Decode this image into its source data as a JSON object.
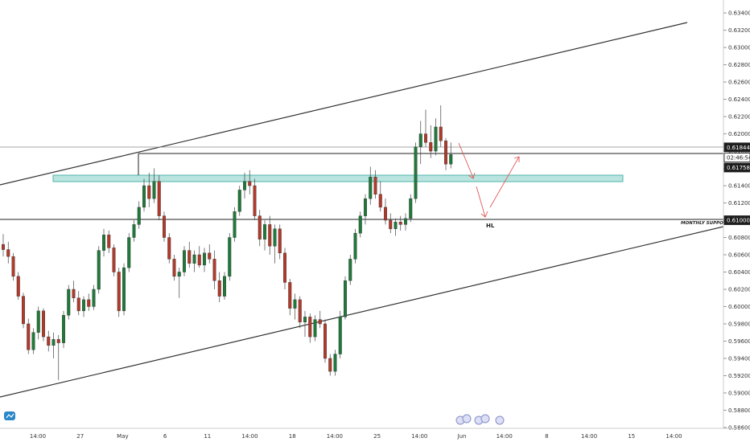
{
  "chart_data": {
    "type": "candlestick",
    "instrument_hint": "",
    "price_axis": {
      "ticks": [
        "0.63400",
        "0.63200",
        "0.63000",
        "0.62800",
        "0.62600",
        "0.62400",
        "0.62200",
        "0.62000",
        "0.61800",
        "0.61600",
        "0.61400",
        "0.61200",
        "0.61000",
        "0.60800",
        "0.60600",
        "0.60400",
        "0.60200",
        "0.60000",
        "0.59800",
        "0.59600",
        "0.59400",
        "0.59200",
        "0.59000",
        "0.58800",
        "0.58600"
      ],
      "ylim": [
        0.5859,
        0.6355
      ]
    },
    "time_axis": {
      "ticks": [
        {
          "label": "14:00",
          "x": 0
        },
        {
          "label": "27",
          "x": 1
        },
        {
          "label": "May",
          "x": 2
        },
        {
          "label": "6",
          "x": 3
        },
        {
          "label": "11",
          "x": 4
        },
        {
          "label": "14:00",
          "x": 5
        },
        {
          "label": "18",
          "x": 6
        },
        {
          "label": "14:00",
          "x": 7
        },
        {
          "label": "25",
          "x": 8
        },
        {
          "label": "14:00",
          "x": 9
        },
        {
          "label": "Jun",
          "x": 10
        },
        {
          "label": "14:00",
          "x": 11
        },
        {
          "label": "8",
          "x": 12
        },
        {
          "label": "14:00",
          "x": 13
        },
        {
          "label": "15",
          "x": 14
        },
        {
          "label": "14:00",
          "x": 15
        }
      ]
    },
    "price_labels": [
      {
        "text": "0.61844",
        "price": 0.61844,
        "style": "dark"
      },
      {
        "text": "02:46:54",
        "price": 0.61725,
        "style": "outline"
      },
      {
        "text": "0.61758",
        "price": 0.6161,
        "style": "dark"
      },
      {
        "text": "0.61000",
        "price": 0.61,
        "style": "dark"
      }
    ],
    "annotations": {
      "monthly_support": {
        "text": "MONTHLY SUPPORT",
        "price": 0.61
      },
      "hl": {
        "text": "HL"
      }
    },
    "candles": [
      {
        "o": 0.6072,
        "h": 0.6084,
        "l": 0.6058,
        "c": 0.6066
      },
      {
        "o": 0.6066,
        "h": 0.6075,
        "l": 0.605,
        "c": 0.6058
      },
      {
        "o": 0.6058,
        "h": 0.6062,
        "l": 0.603,
        "c": 0.6035
      },
      {
        "o": 0.6035,
        "h": 0.604,
        "l": 0.6008,
        "c": 0.6012
      },
      {
        "o": 0.6012,
        "h": 0.6016,
        "l": 0.5975,
        "c": 0.598
      },
      {
        "o": 0.598,
        "h": 0.5986,
        "l": 0.5945,
        "c": 0.595
      },
      {
        "o": 0.595,
        "h": 0.5975,
        "l": 0.5945,
        "c": 0.597
      },
      {
        "o": 0.597,
        "h": 0.6,
        "l": 0.5962,
        "c": 0.5995
      },
      {
        "o": 0.5995,
        "h": 0.5998,
        "l": 0.596,
        "c": 0.5965
      },
      {
        "o": 0.5965,
        "h": 0.5972,
        "l": 0.5948,
        "c": 0.5955
      },
      {
        "o": 0.5955,
        "h": 0.597,
        "l": 0.594,
        "c": 0.5962
      },
      {
        "o": 0.5962,
        "h": 0.5967,
        "l": 0.5915,
        "c": 0.5958
      },
      {
        "o": 0.5958,
        "h": 0.5995,
        "l": 0.5952,
        "c": 0.599
      },
      {
        "o": 0.599,
        "h": 0.6025,
        "l": 0.5985,
        "c": 0.602
      },
      {
        "o": 0.602,
        "h": 0.603,
        "l": 0.6005,
        "c": 0.601
      },
      {
        "o": 0.601,
        "h": 0.6018,
        "l": 0.599,
        "c": 0.5995
      },
      {
        "o": 0.5995,
        "h": 0.6012,
        "l": 0.5988,
        "c": 0.6008
      },
      {
        "o": 0.6008,
        "h": 0.6015,
        "l": 0.5995,
        "c": 0.6
      },
      {
        "o": 0.6,
        "h": 0.6025,
        "l": 0.5996,
        "c": 0.602
      },
      {
        "o": 0.602,
        "h": 0.607,
        "l": 0.6015,
        "c": 0.6065
      },
      {
        "o": 0.6065,
        "h": 0.609,
        "l": 0.6058,
        "c": 0.6083
      },
      {
        "o": 0.6083,
        "h": 0.6088,
        "l": 0.6062,
        "c": 0.6068
      },
      {
        "o": 0.6068,
        "h": 0.6072,
        "l": 0.6035,
        "c": 0.604
      },
      {
        "o": 0.604,
        "h": 0.6045,
        "l": 0.5988,
        "c": 0.5995
      },
      {
        "o": 0.5995,
        "h": 0.605,
        "l": 0.599,
        "c": 0.6045
      },
      {
        "o": 0.6045,
        "h": 0.6085,
        "l": 0.604,
        "c": 0.608
      },
      {
        "o": 0.608,
        "h": 0.61,
        "l": 0.6075,
        "c": 0.6095
      },
      {
        "o": 0.6095,
        "h": 0.6122,
        "l": 0.609,
        "c": 0.6115
      },
      {
        "o": 0.6115,
        "h": 0.6148,
        "l": 0.611,
        "c": 0.614
      },
      {
        "o": 0.614,
        "h": 0.6155,
        "l": 0.6115,
        "c": 0.6125
      },
      {
        "o": 0.6125,
        "h": 0.616,
        "l": 0.612,
        "c": 0.6145
      },
      {
        "o": 0.6145,
        "h": 0.6152,
        "l": 0.61,
        "c": 0.6105
      },
      {
        "o": 0.6105,
        "h": 0.611,
        "l": 0.6075,
        "c": 0.608
      },
      {
        "o": 0.608,
        "h": 0.6085,
        "l": 0.605,
        "c": 0.6055
      },
      {
        "o": 0.6055,
        "h": 0.606,
        "l": 0.603,
        "c": 0.6035
      },
      {
        "o": 0.6035,
        "h": 0.6045,
        "l": 0.601,
        "c": 0.604
      },
      {
        "o": 0.604,
        "h": 0.607,
        "l": 0.6035,
        "c": 0.6065
      },
      {
        "o": 0.6065,
        "h": 0.6075,
        "l": 0.6045,
        "c": 0.605
      },
      {
        "o": 0.605,
        "h": 0.6065,
        "l": 0.604,
        "c": 0.606
      },
      {
        "o": 0.606,
        "h": 0.607,
        "l": 0.6045,
        "c": 0.6048
      },
      {
        "o": 0.6048,
        "h": 0.6068,
        "l": 0.604,
        "c": 0.6062
      },
      {
        "o": 0.6062,
        "h": 0.6072,
        "l": 0.605,
        "c": 0.6055
      },
      {
        "o": 0.6055,
        "h": 0.6065,
        "l": 0.602,
        "c": 0.603
      },
      {
        "o": 0.603,
        "h": 0.604,
        "l": 0.6005,
        "c": 0.6012
      },
      {
        "o": 0.6012,
        "h": 0.604,
        "l": 0.6008,
        "c": 0.6035
      },
      {
        "o": 0.6035,
        "h": 0.6085,
        "l": 0.603,
        "c": 0.608
      },
      {
        "o": 0.608,
        "h": 0.6115,
        "l": 0.6075,
        "c": 0.611
      },
      {
        "o": 0.611,
        "h": 0.614,
        "l": 0.6105,
        "c": 0.6135
      },
      {
        "o": 0.6135,
        "h": 0.6155,
        "l": 0.6125,
        "c": 0.6145
      },
      {
        "o": 0.6145,
        "h": 0.6158,
        "l": 0.613,
        "c": 0.614
      },
      {
        "o": 0.614,
        "h": 0.6148,
        "l": 0.61,
        "c": 0.6105
      },
      {
        "o": 0.6105,
        "h": 0.6112,
        "l": 0.607,
        "c": 0.6078
      },
      {
        "o": 0.6078,
        "h": 0.61,
        "l": 0.6065,
        "c": 0.6095
      },
      {
        "o": 0.6095,
        "h": 0.6105,
        "l": 0.606,
        "c": 0.607
      },
      {
        "o": 0.607,
        "h": 0.6095,
        "l": 0.605,
        "c": 0.609
      },
      {
        "o": 0.609,
        "h": 0.6095,
        "l": 0.6055,
        "c": 0.6062
      },
      {
        "o": 0.6062,
        "h": 0.6068,
        "l": 0.602,
        "c": 0.6028
      },
      {
        "o": 0.6028,
        "h": 0.6032,
        "l": 0.599,
        "c": 0.5998
      },
      {
        "o": 0.5998,
        "h": 0.6015,
        "l": 0.5985,
        "c": 0.6008
      },
      {
        "o": 0.6008,
        "h": 0.6012,
        "l": 0.5975,
        "c": 0.5982
      },
      {
        "o": 0.5982,
        "h": 0.5995,
        "l": 0.5965,
        "c": 0.5988
      },
      {
        "o": 0.5988,
        "h": 0.5992,
        "l": 0.5958,
        "c": 0.5965
      },
      {
        "o": 0.5965,
        "h": 0.599,
        "l": 0.596,
        "c": 0.5985
      },
      {
        "o": 0.5985,
        "h": 0.5995,
        "l": 0.5975,
        "c": 0.598
      },
      {
        "o": 0.598,
        "h": 0.5985,
        "l": 0.5935,
        "c": 0.594
      },
      {
        "o": 0.594,
        "h": 0.5945,
        "l": 0.592,
        "c": 0.5925
      },
      {
        "o": 0.5925,
        "h": 0.595,
        "l": 0.592,
        "c": 0.5945
      },
      {
        "o": 0.5945,
        "h": 0.5995,
        "l": 0.594,
        "c": 0.5988
      },
      {
        "o": 0.5988,
        "h": 0.6035,
        "l": 0.5985,
        "c": 0.603
      },
      {
        "o": 0.603,
        "h": 0.606,
        "l": 0.6025,
        "c": 0.6055
      },
      {
        "o": 0.6055,
        "h": 0.609,
        "l": 0.605,
        "c": 0.6085
      },
      {
        "o": 0.6085,
        "h": 0.611,
        "l": 0.608,
        "c": 0.6105
      },
      {
        "o": 0.6105,
        "h": 0.613,
        "l": 0.6095,
        "c": 0.6125
      },
      {
        "o": 0.6125,
        "h": 0.6162,
        "l": 0.6118,
        "c": 0.615
      },
      {
        "o": 0.615,
        "h": 0.6158,
        "l": 0.6125,
        "c": 0.613
      },
      {
        "o": 0.613,
        "h": 0.6145,
        "l": 0.611,
        "c": 0.6115
      },
      {
        "o": 0.6115,
        "h": 0.6125,
        "l": 0.6095,
        "c": 0.61
      },
      {
        "o": 0.61,
        "h": 0.6108,
        "l": 0.6085,
        "c": 0.609
      },
      {
        "o": 0.609,
        "h": 0.6102,
        "l": 0.6082,
        "c": 0.6098
      },
      {
        "o": 0.6098,
        "h": 0.6105,
        "l": 0.6088,
        "c": 0.6095
      },
      {
        "o": 0.6095,
        "h": 0.6108,
        "l": 0.6088,
        "c": 0.6102
      },
      {
        "o": 0.6102,
        "h": 0.613,
        "l": 0.6098,
        "c": 0.6125
      },
      {
        "o": 0.6125,
        "h": 0.619,
        "l": 0.612,
        "c": 0.6185
      },
      {
        "o": 0.6185,
        "h": 0.6215,
        "l": 0.6165,
        "c": 0.62
      },
      {
        "o": 0.62,
        "h": 0.6228,
        "l": 0.6185,
        "c": 0.619
      },
      {
        "o": 0.619,
        "h": 0.621,
        "l": 0.6172,
        "c": 0.618
      },
      {
        "o": 0.618,
        "h": 0.6218,
        "l": 0.6175,
        "c": 0.6208
      },
      {
        "o": 0.6208,
        "h": 0.6233,
        "l": 0.6185,
        "c": 0.6192
      },
      {
        "o": 0.6192,
        "h": 0.6195,
        "l": 0.6158,
        "c": 0.6165
      },
      {
        "o": 0.6165,
        "h": 0.619,
        "l": 0.616,
        "c": 0.6176
      }
    ]
  }
}
